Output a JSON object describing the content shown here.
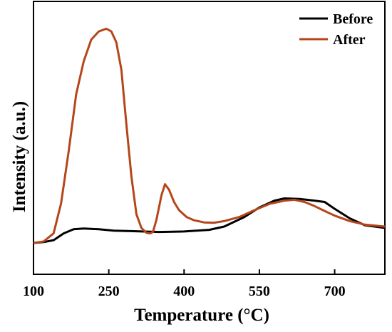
{
  "chart_data": {
    "type": "line",
    "title": "",
    "xlabel": "Temperature (°C)",
    "ylabel": "Intensity (a.u.)",
    "xlim": [
      100,
      800
    ],
    "ylim": [
      0,
      1
    ],
    "x_ticks": [
      100,
      250,
      400,
      550,
      700
    ],
    "x_tick_labels": [
      "100",
      "250",
      "400",
      "550",
      "700"
    ],
    "y_ticks_shown": false,
    "grid": false,
    "legend_position": "top-right",
    "series": [
      {
        "name": "Before",
        "color": "#000000",
        "points": [
          [
            100,
            0.115
          ],
          [
            120,
            0.118
          ],
          [
            140,
            0.125
          ],
          [
            160,
            0.15
          ],
          [
            180,
            0.165
          ],
          [
            200,
            0.168
          ],
          [
            230,
            0.165
          ],
          [
            260,
            0.16
          ],
          [
            300,
            0.158
          ],
          [
            350,
            0.155
          ],
          [
            400,
            0.157
          ],
          [
            450,
            0.163
          ],
          [
            480,
            0.175
          ],
          [
            520,
            0.21
          ],
          [
            550,
            0.245
          ],
          [
            580,
            0.27
          ],
          [
            600,
            0.278
          ],
          [
            630,
            0.276
          ],
          [
            660,
            0.27
          ],
          [
            680,
            0.265
          ],
          [
            700,
            0.24
          ],
          [
            730,
            0.205
          ],
          [
            760,
            0.18
          ],
          [
            800,
            0.17
          ]
        ]
      },
      {
        "name": "After",
        "color": "#b5461a",
        "points": [
          [
            100,
            0.115
          ],
          [
            120,
            0.12
          ],
          [
            140,
            0.15
          ],
          [
            155,
            0.26
          ],
          [
            170,
            0.45
          ],
          [
            185,
            0.66
          ],
          [
            200,
            0.78
          ],
          [
            215,
            0.86
          ],
          [
            230,
            0.89
          ],
          [
            245,
            0.9
          ],
          [
            255,
            0.89
          ],
          [
            265,
            0.85
          ],
          [
            275,
            0.75
          ],
          [
            285,
            0.55
          ],
          [
            295,
            0.36
          ],
          [
            305,
            0.22
          ],
          [
            315,
            0.17
          ],
          [
            325,
            0.152
          ],
          [
            332,
            0.15
          ],
          [
            338,
            0.155
          ],
          [
            345,
            0.2
          ],
          [
            355,
            0.29
          ],
          [
            362,
            0.33
          ],
          [
            370,
            0.31
          ],
          [
            380,
            0.265
          ],
          [
            390,
            0.235
          ],
          [
            405,
            0.21
          ],
          [
            420,
            0.198
          ],
          [
            440,
            0.19
          ],
          [
            460,
            0.189
          ],
          [
            480,
            0.195
          ],
          [
            510,
            0.21
          ],
          [
            540,
            0.235
          ],
          [
            570,
            0.258
          ],
          [
            600,
            0.27
          ],
          [
            620,
            0.273
          ],
          [
            640,
            0.265
          ],
          [
            660,
            0.25
          ],
          [
            680,
            0.232
          ],
          [
            700,
            0.215
          ],
          [
            730,
            0.195
          ],
          [
            760,
            0.182
          ],
          [
            800,
            0.175
          ]
        ]
      }
    ]
  },
  "legend": [
    {
      "label": "Before",
      "color": "#000000"
    },
    {
      "label": "After",
      "color": "#b5461a"
    }
  ]
}
